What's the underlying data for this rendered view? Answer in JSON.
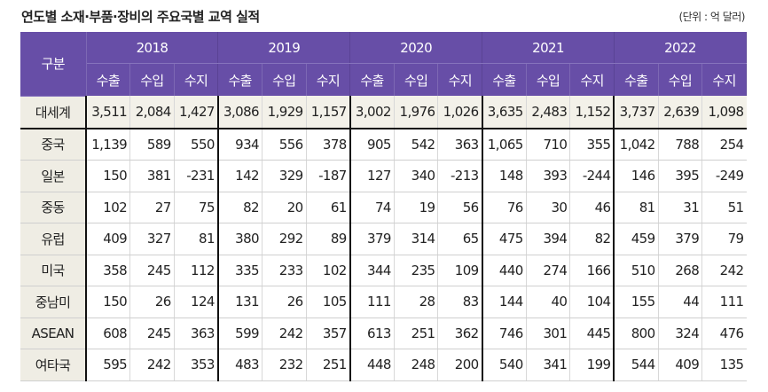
{
  "title": "연도별 소재·부품·장비의 주요국별 교역 실적",
  "unit": "(단위 : 억 달러)",
  "table": {
    "corner": "구분",
    "years": [
      "2018",
      "2019",
      "2020",
      "2021",
      "2022"
    ],
    "sub_headers": [
      "수출",
      "수입",
      "수지"
    ],
    "rows": [
      {
        "label": "대세계",
        "values": [
          "3,511",
          "2,084",
          "1,427",
          "3,086",
          "1,929",
          "1,157",
          "3,002",
          "1,976",
          "1,026",
          "3,635",
          "2,483",
          "1,152",
          "3,737",
          "2,639",
          "1,098"
        ]
      },
      {
        "label": "중국",
        "values": [
          "1,139",
          "589",
          "550",
          "934",
          "556",
          "378",
          "905",
          "542",
          "363",
          "1,065",
          "710",
          "355",
          "1,042",
          "788",
          "254"
        ]
      },
      {
        "label": "일본",
        "values": [
          "150",
          "381",
          "-231",
          "142",
          "329",
          "-187",
          "127",
          "340",
          "-213",
          "148",
          "393",
          "-244",
          "146",
          "395",
          "-249"
        ]
      },
      {
        "label": "중동",
        "values": [
          "102",
          "27",
          "75",
          "82",
          "20",
          "61",
          "74",
          "19",
          "56",
          "76",
          "30",
          "46",
          "81",
          "31",
          "51"
        ]
      },
      {
        "label": "유럽",
        "values": [
          "409",
          "327",
          "81",
          "380",
          "292",
          "89",
          "379",
          "314",
          "65",
          "475",
          "394",
          "82",
          "459",
          "379",
          "79"
        ]
      },
      {
        "label": "미국",
        "values": [
          "358",
          "245",
          "112",
          "335",
          "233",
          "102",
          "344",
          "235",
          "109",
          "440",
          "274",
          "166",
          "510",
          "268",
          "242"
        ]
      },
      {
        "label": "중남미",
        "values": [
          "150",
          "26",
          "124",
          "131",
          "26",
          "105",
          "111",
          "28",
          "83",
          "144",
          "40",
          "104",
          "155",
          "44",
          "111"
        ]
      },
      {
        "label": "ASEAN",
        "values": [
          "608",
          "245",
          "363",
          "599",
          "242",
          "357",
          "613",
          "251",
          "362",
          "746",
          "301",
          "445",
          "800",
          "324",
          "476"
        ]
      },
      {
        "label": "여타국",
        "values": [
          "595",
          "242",
          "353",
          "483",
          "232",
          "251",
          "448",
          "248",
          "200",
          "540",
          "341",
          "199",
          "544",
          "409",
          "135"
        ]
      }
    ]
  },
  "colors": {
    "header": "#674ea7",
    "label_bg": "#efede4"
  }
}
